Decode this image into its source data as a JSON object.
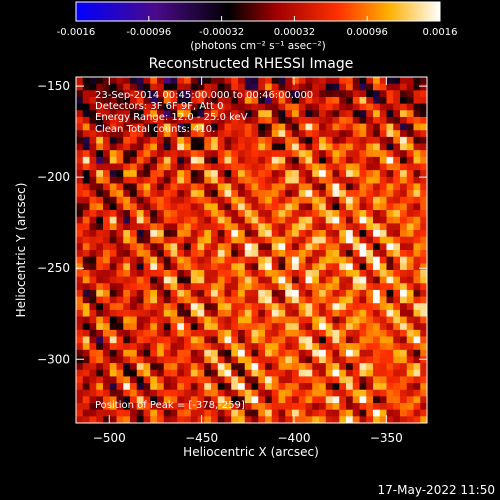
{
  "chart_data": {
    "type": "heatmap",
    "title": "Reconstructed RHESSI Image",
    "colorbar": {
      "ticks": [
        "-0.0016",
        "-0.00096",
        "-0.00032",
        "0.00032",
        "0.00096",
        "0.0016"
      ],
      "range": [
        -0.0016,
        0.0016
      ],
      "unit_label": "(photons cm⁻² s⁻¹ asec⁻²)",
      "colormap": [
        "#0000ff",
        "#4a0a8a",
        "#000000",
        "#a00000",
        "#ff3000",
        "#ffb000",
        "#ffffff"
      ]
    },
    "xlabel": "Heliocentric X (arcsec)",
    "ylabel": "Heliocentric Y (arcsec)",
    "xlim": [
      -518,
      -328
    ],
    "ylim": [
      -335,
      -145
    ],
    "xticks": [
      -500,
      -450,
      -400,
      -350
    ],
    "yticks": [
      -150,
      -200,
      -250,
      -300
    ],
    "annotations": [
      "23-Sep-2014 00:45:00.000 to 00:46:00.000",
      "Detectors: 3F 6F 9F, Att 0",
      "Energy Range: 12.0 - 25.0 keV",
      "Clean    Total counts: 410."
    ],
    "peak_label": "Position of Peak = [-378,-259]",
    "peak": [
      -378,
      -259
    ],
    "timestamp": "17-May-2022 11:50"
  }
}
